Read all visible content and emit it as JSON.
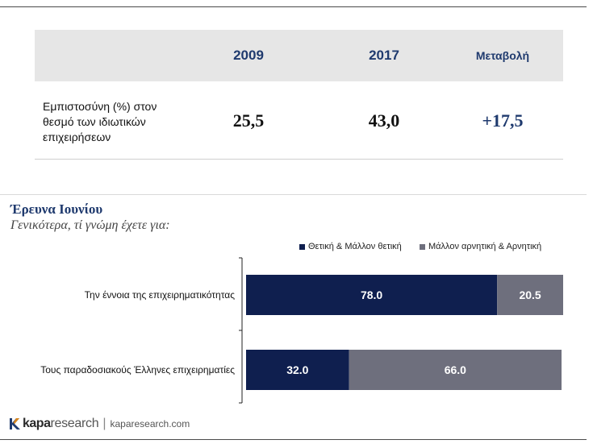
{
  "trust_table": {
    "headers": [
      "2009",
      "2017",
      "Μεταβολή"
    ],
    "row_label_lines": [
      "Εμπιστοσύνη (%) στον",
      "θεσμό των ιδιωτικών",
      "επιχειρήσεων"
    ],
    "values": [
      "25,5",
      "43,0",
      "+17,5"
    ]
  },
  "survey": {
    "title": "Έρευνα Ιουνίου",
    "question": "Γενικότερα, τί γνώμη έχετε για:"
  },
  "chart_data": {
    "type": "bar",
    "orientation": "horizontal",
    "stacked": true,
    "categories": [
      "Την έννοια της επιχειρηματικότητας",
      "Τους παραδοσιακούς Έλληνες επιχειρηματίες"
    ],
    "series": [
      {
        "name": "Θετική & Μάλλον θετική",
        "values": [
          78.0,
          32.0
        ],
        "labels": [
          "78.0",
          "32.0"
        ],
        "color": "#0f1f4f"
      },
      {
        "name": "Μάλλον αρνητική & Αρνητική",
        "values": [
          20.5,
          66.0
        ],
        "labels": [
          "20.5",
          "66.0"
        ],
        "color": "#6e6f7d"
      }
    ],
    "xlim": [
      0,
      100
    ],
    "legend_position": "top-right",
    "grid": false
  },
  "footer": {
    "brand_kapa": "kapa",
    "brand_research": "research",
    "separator": "|",
    "url": "kaparesearch.com"
  },
  "colors": {
    "header_text": "#1f3a6e",
    "header_bg": "#e6e6e6"
  }
}
